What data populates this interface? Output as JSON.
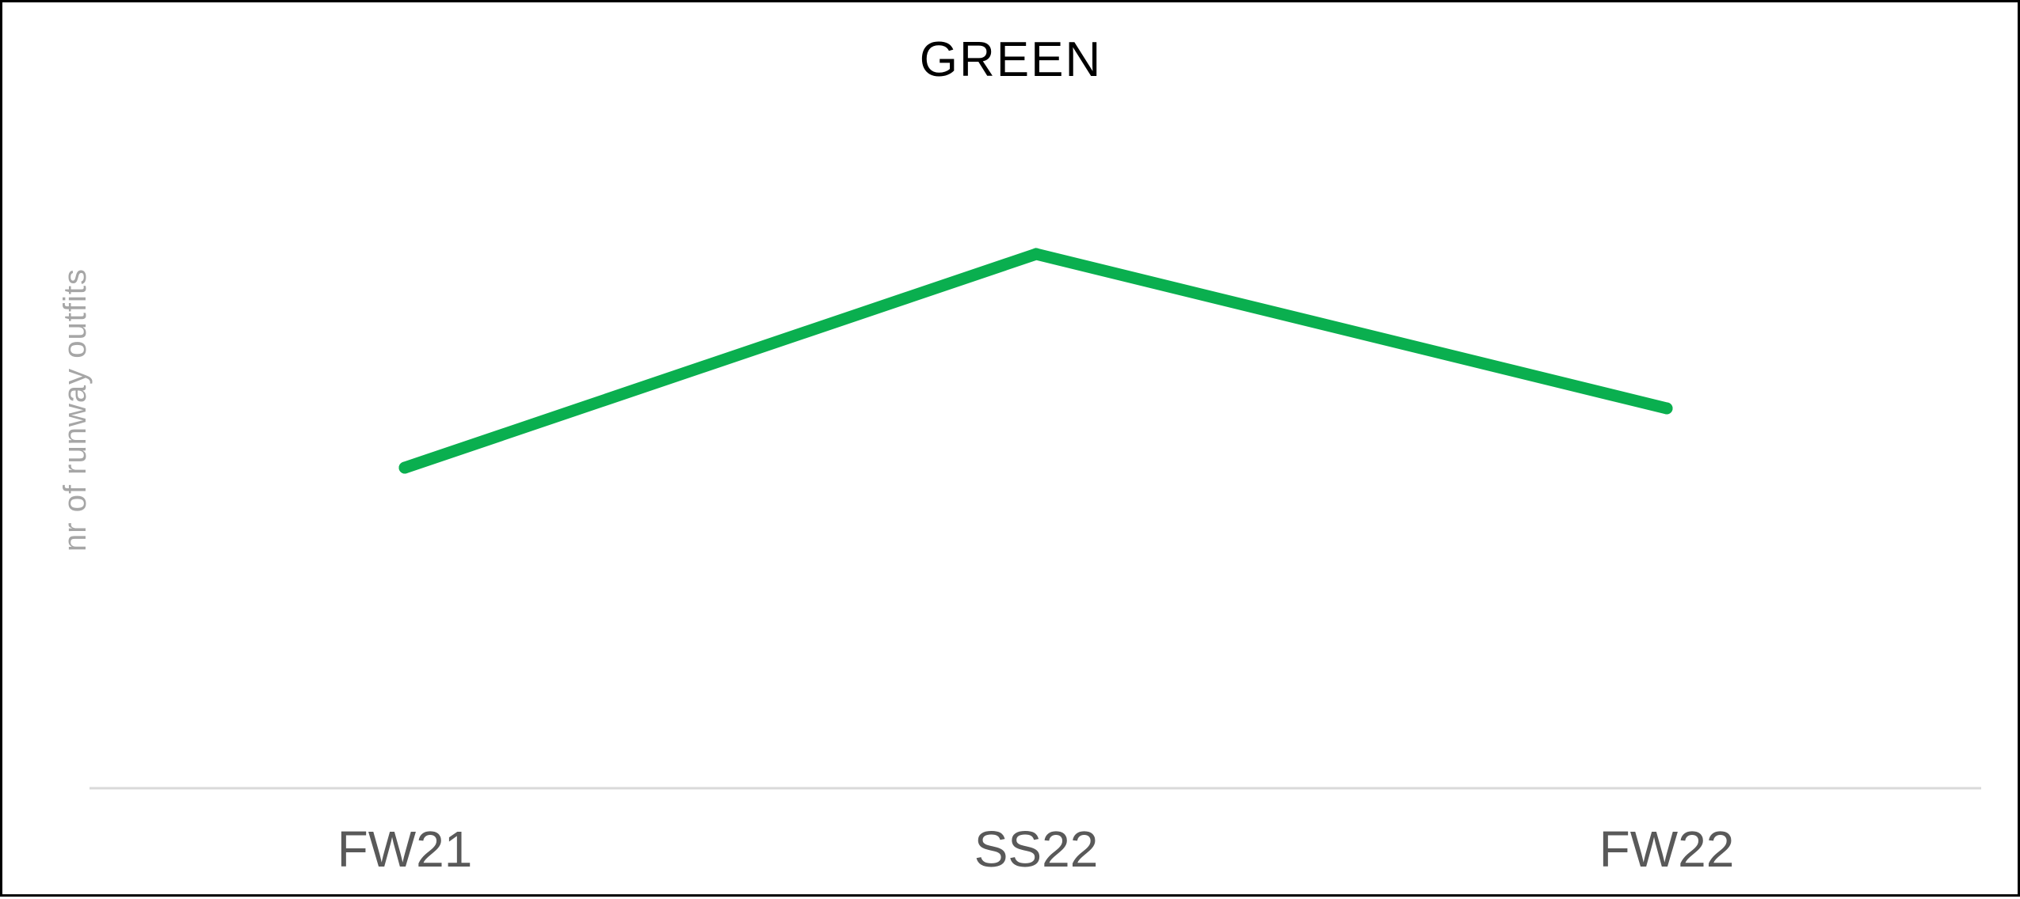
{
  "chart_data": {
    "type": "line",
    "title": "GREEN",
    "xlabel": "",
    "ylabel": "nr of runway outfits",
    "categories": [
      "FW21",
      "SS22",
      "FW22"
    ],
    "series": [
      {
        "color": "#0aaf4f",
        "values": [
          27,
          45,
          32
        ]
      }
    ],
    "ylim": [
      0,
      60
    ],
    "grid": false,
    "legend": "none"
  }
}
